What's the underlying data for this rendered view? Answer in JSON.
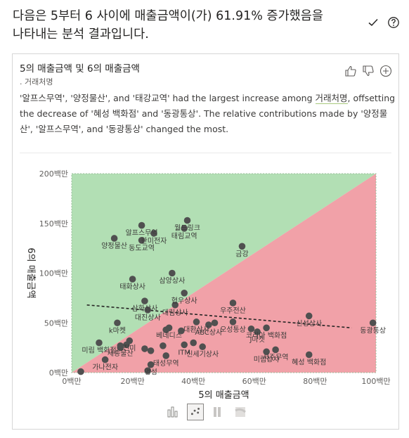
{
  "header": {
    "line1": "다음은 5부터 6 사이에 매출금액이(가) 61.91% 증가했음을",
    "line2": "나타내는 분석 결과입니다.",
    "icons": [
      "check-icon",
      "help-icon"
    ]
  },
  "card": {
    "title": "5의 매출금액 및 6의 매출금액",
    "subtitle": ". 거래처명",
    "narrative": {
      "p1": "'알프스무역', '양정물산', and '태강교역' had the largest increase among ",
      "highlight": "거래처명",
      "p2": ", offsetting the decrease of '혜성 백화점' and '동광통상'. The relative contributions made by '양정물산', '알프스무역', and '동광통상' changed the most."
    },
    "icons": [
      "thumbs-up-icon",
      "thumbs-down-icon",
      "add-icon"
    ]
  },
  "viz_tabs": [
    {
      "name": "bar-viz-tab",
      "active": false
    },
    {
      "name": "scatter-viz-tab",
      "active": true
    },
    {
      "name": "column-viz-tab",
      "active": false
    },
    {
      "name": "ribbon-viz-tab",
      "active": false
    }
  ],
  "colors": {
    "increase": "#b2dfb4",
    "decrease": "#f1a1a8",
    "point": "#505050"
  },
  "chart_data": {
    "type": "scatter",
    "xlabel": "5의 매출금액",
    "ylabel": "6의 매출금액",
    "xlim": [
      0,
      100
    ],
    "ylim": [
      0,
      200
    ],
    "xticks": [
      "0백만",
      "20백만",
      "40백만",
      "60백만",
      "80백만",
      "100백만"
    ],
    "yticks": [
      "0백만",
      "50백만",
      "100백만",
      "150백만",
      "200백만"
    ],
    "trendline": {
      "x": [
        5,
        92
      ],
      "y": [
        68,
        45
      ]
    },
    "points": [
      {
        "label": "알프스무역",
        "x": 23,
        "y": 148
      },
      {
        "label": "월드링크",
        "x": 38,
        "y": 153
      },
      {
        "label": "한미전자",
        "x": 27,
        "y": 140
      },
      {
        "label": "태림교역",
        "x": 37,
        "y": 145
      },
      {
        "label": "양정물산",
        "x": 14,
        "y": 135
      },
      {
        "label": "동도교역",
        "x": 23,
        "y": 133
      },
      {
        "label": "금강",
        "x": 56,
        "y": 127
      },
      {
        "label": "삼양상사",
        "x": 33,
        "y": 100
      },
      {
        "label": "태화상사",
        "x": 20,
        "y": 94
      },
      {
        "label": "협우상사",
        "x": 37,
        "y": 80
      },
      {
        "label": "우주전산",
        "x": 53,
        "y": 70
      },
      {
        "label": "삼화상사",
        "x": 24,
        "y": 72
      },
      {
        "label": "대진상사",
        "x": 25,
        "y": 63
      },
      {
        "label": "대림상사",
        "x": 34,
        "y": 68
      },
      {
        "label": "오성통상",
        "x": 53,
        "y": 51
      },
      {
        "label": "대환상사",
        "x": 41,
        "y": 51
      },
      {
        "label": "코리아 백화점",
        "x": 64,
        "y": 45
      },
      {
        "label": "신성상사",
        "x": 78,
        "y": 57
      },
      {
        "label": "동광통상",
        "x": 99,
        "y": 50
      },
      {
        "label": "ABC상사",
        "x": 45,
        "y": 48
      },
      {
        "label": "k마켓",
        "x": 15,
        "y": 50
      },
      {
        "label": "베네디스",
        "x": 32,
        "y": 45
      },
      {
        "label": "진미",
        "x": 19,
        "y": 32
      },
      {
        "label": "J마켓",
        "x": 61,
        "y": 41
      },
      {
        "label": "미림 백화점",
        "x": 9,
        "y": 30
      },
      {
        "label": "세종물산",
        "x": 16,
        "y": 27
      },
      {
        "label": "신세기상사",
        "x": 43,
        "y": 26
      },
      {
        "label": "ITM",
        "x": 37,
        "y": 28
      },
      {
        "label": "서주무역",
        "x": 67,
        "y": 23
      },
      {
        "label": "미림상사",
        "x": 64,
        "y": 21
      },
      {
        "label": "혜성 백화점",
        "x": 78,
        "y": 18
      },
      {
        "label": "가나전자",
        "x": 11,
        "y": 13
      },
      {
        "label": "명성",
        "x": 26,
        "y": 8
      },
      {
        "label": "태성무역",
        "x": 31,
        "y": 17
      },
      {
        "label": "",
        "x": 3,
        "y": 1
      },
      {
        "label": "",
        "x": 25,
        "y": 2
      },
      {
        "label": "",
        "x": 30,
        "y": 27
      },
      {
        "label": "",
        "x": 16,
        "y": 25
      },
      {
        "label": "",
        "x": 18,
        "y": 28
      },
      {
        "label": "",
        "x": 24,
        "y": 24
      },
      {
        "label": "",
        "x": 26,
        "y": 22
      },
      {
        "label": "",
        "x": 36,
        "y": 42
      },
      {
        "label": "",
        "x": 40,
        "y": 30
      },
      {
        "label": "",
        "x": 59,
        "y": 44
      },
      {
        "label": "",
        "x": 47,
        "y": 50
      },
      {
        "label": "",
        "x": 31,
        "y": 43
      }
    ]
  }
}
